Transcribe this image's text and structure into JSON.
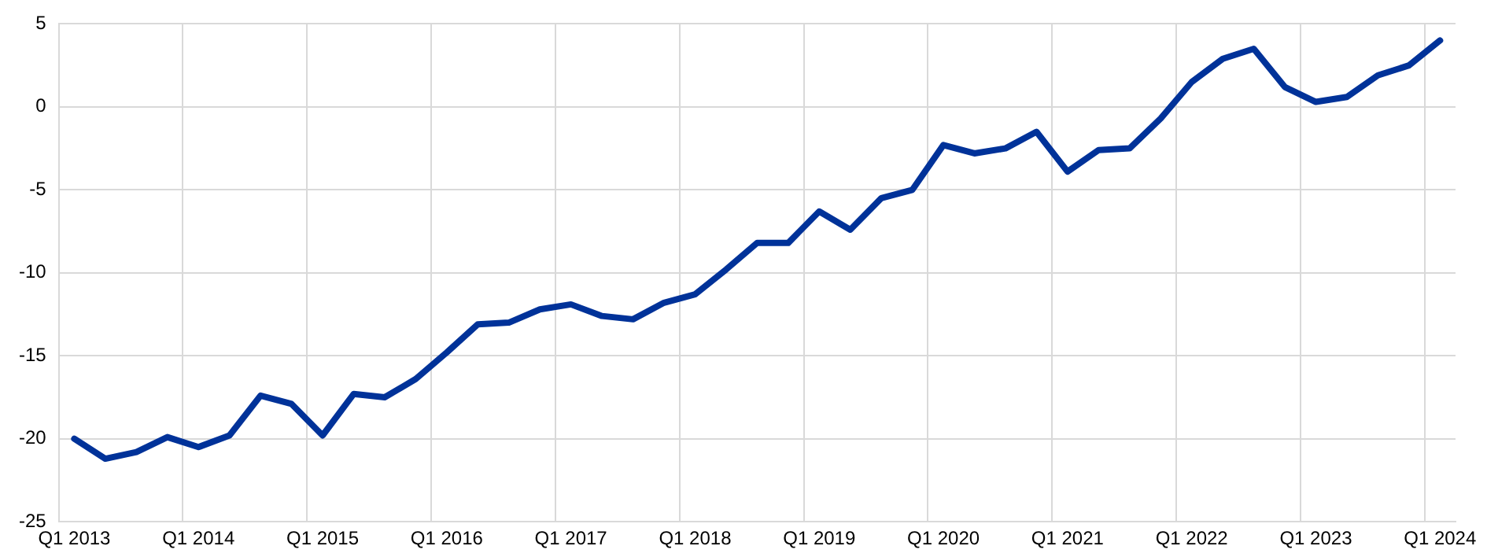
{
  "chart_data": {
    "type": "line",
    "categories": [
      "Q1 2013",
      null,
      null,
      null,
      "Q1 2014",
      null,
      null,
      null,
      "Q1 2015",
      null,
      null,
      null,
      "Q1 2016",
      null,
      null,
      null,
      "Q1 2017",
      null,
      null,
      null,
      "Q1 2018",
      null,
      null,
      null,
      "Q1 2019",
      null,
      null,
      null,
      "Q1 2020",
      null,
      null,
      null,
      "Q1 2021",
      null,
      null,
      null,
      "Q1 2022",
      null,
      null,
      null,
      "Q1 2023",
      null,
      null,
      null,
      "Q1 2024"
    ],
    "series": [
      {
        "color": "#003299",
        "values": [
          -20.0,
          -21.2,
          -20.8,
          -19.9,
          -20.5,
          -19.8,
          -17.4,
          -17.9,
          -19.8,
          -17.3,
          -17.5,
          -16.4,
          -14.8,
          -13.1,
          -13.0,
          -12.2,
          -11.9,
          -12.6,
          -12.8,
          -11.8,
          -11.3,
          -9.8,
          -8.2,
          -8.2,
          -6.3,
          -7.4,
          -5.5,
          -5.0,
          -2.3,
          -2.8,
          -2.5,
          -1.5,
          -3.9,
          -2.6,
          -2.5,
          -0.7,
          1.5,
          2.9,
          3.5,
          1.2,
          0.3,
          0.6,
          1.9,
          2.5,
          4.0
        ]
      }
    ],
    "ylim": [
      -25,
      5
    ],
    "yticks": [
      -25,
      -20,
      -15,
      -10,
      -5,
      0,
      5
    ],
    "grid": true,
    "legend": false,
    "marker": "none",
    "line_style": "solid"
  }
}
